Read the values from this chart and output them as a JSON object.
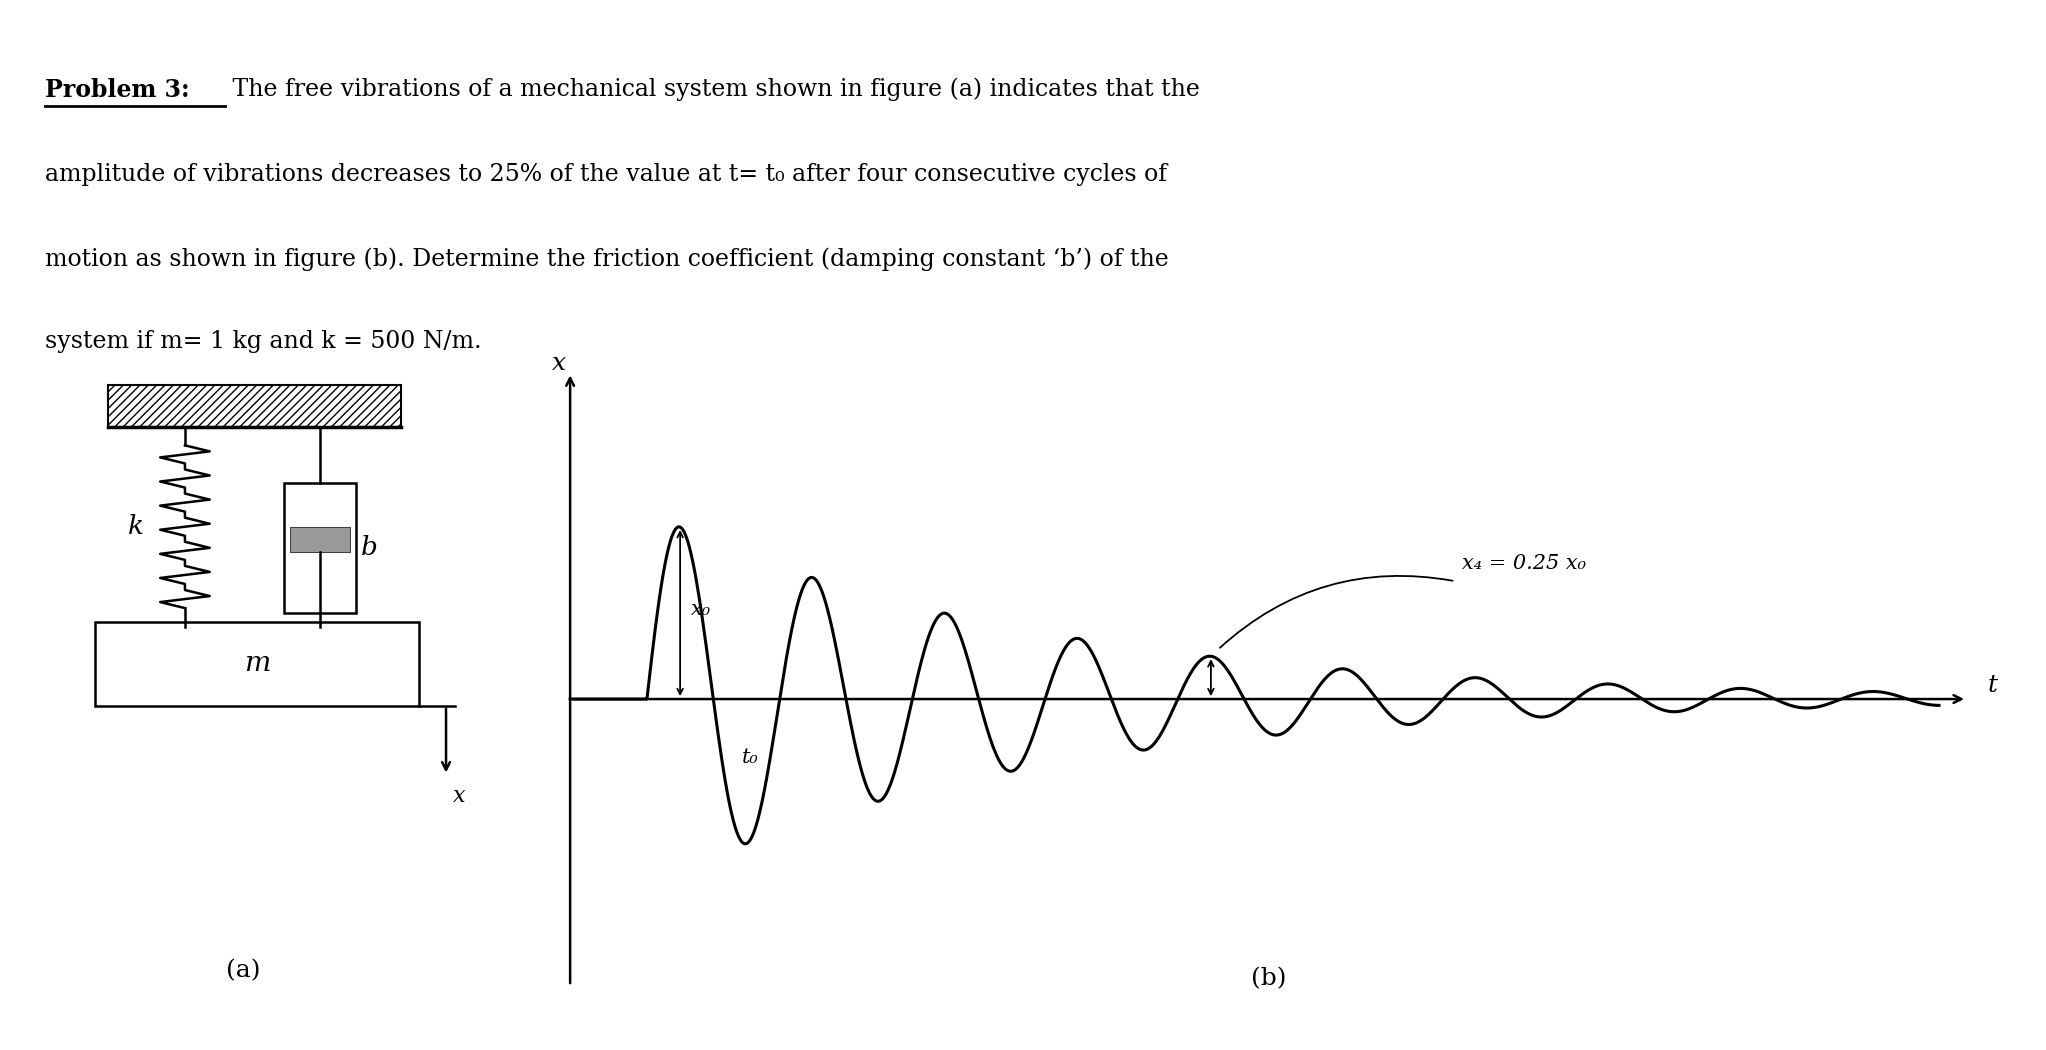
{
  "line1_bold": "Problem 3:",
  "line1_rest": " The free vibrations of a mechanical system shown in figure (a) indicates that the",
  "line2": "amplitude of vibrations decreases to 25% of the value at t= t₀ after four consecutive cycles of",
  "line3": "motion as shown in figure (b). Determine the friction coefficient (damping constant ‘b’) of the",
  "line4": "system if m= 1 kg and k = 500 N/m.",
  "label_a": "(a)",
  "label_b": "(b)",
  "label_k": "k",
  "label_b_damper": "b",
  "label_m": "m",
  "label_x_disp": "x",
  "label_x_axis": "x",
  "label_t_axis": "t",
  "label_x0": "x₀",
  "label_t0": "t₀",
  "label_x4": "x₄ = 0.25 x₀",
  "line_color": "#000000",
  "text_color": "#000000",
  "font_size_text": 17,
  "font_size_label": 16,
  "T_vis": 0.095,
  "t0_val": 0.055,
  "alpha_decay": 3.66,
  "amp_scale": 0.85
}
